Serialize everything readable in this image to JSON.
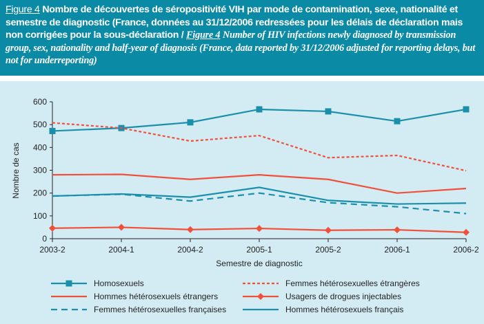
{
  "header": {
    "fig_label_fr": "Figure 4",
    "title_fr": "Nombre de découvertes de séropositivité VIH par mode de contamination, sexe, nationalité et semestre de diagnostic (France, données au 31/12/2006 redressées pour les délais de déclaration mais non corrigées pour la sous-déclaration /",
    "fig_label_en": "Figure 4",
    "title_en": "Number of HIV infections newly diagnosed by transmission group, sex, nationality and half-year of diagnosis (France, data reported by 31/12/2006 adjusted for reporting delays, but not for underreporting)"
  },
  "chart_data": {
    "type": "line",
    "title": "",
    "xlabel": "Semestre de diagnostic",
    "ylabel": "Nombre de cas",
    "ylim": [
      0,
      600
    ],
    "yticks": [
      0,
      100,
      200,
      300,
      400,
      500,
      600
    ],
    "grid": false,
    "legend_placement": "bottom",
    "categories": [
      "2003-2",
      "2004-1",
      "2004-2",
      "2005-1",
      "2005-2",
      "2006-1",
      "2006-2"
    ],
    "series": [
      {
        "name": "Homosexuels",
        "color": "#1a8fab",
        "style": "solid",
        "marker": "square",
        "values": [
          472,
          485,
          510,
          567,
          558,
          515,
          567
        ]
      },
      {
        "name": "Femmes hétérosexuelles étrangères",
        "color": "#f0503a",
        "style": "dotted",
        "marker": "none",
        "values": [
          508,
          485,
          428,
          452,
          355,
          365,
          298
        ]
      },
      {
        "name": "Hommes hétérosexuels étrangers",
        "color": "#f0503a",
        "style": "solid",
        "marker": "none",
        "values": [
          280,
          282,
          260,
          280,
          260,
          200,
          220
        ]
      },
      {
        "name": "Usagers de drogues injectables",
        "color": "#f0503a",
        "style": "solid",
        "marker": "diamond",
        "values": [
          46,
          50,
          40,
          45,
          37,
          39,
          28
        ]
      },
      {
        "name": "Femmes hétérosexuelles françaises",
        "color": "#1a8fab",
        "style": "dashed",
        "marker": "none",
        "values": [
          187,
          195,
          165,
          200,
          158,
          140,
          110
        ]
      },
      {
        "name": "Hommes hétérosexuels français",
        "color": "#1a8fab",
        "style": "solid",
        "marker": "none",
        "values": [
          187,
          196,
          182,
          225,
          168,
          152,
          156
        ]
      }
    ]
  }
}
